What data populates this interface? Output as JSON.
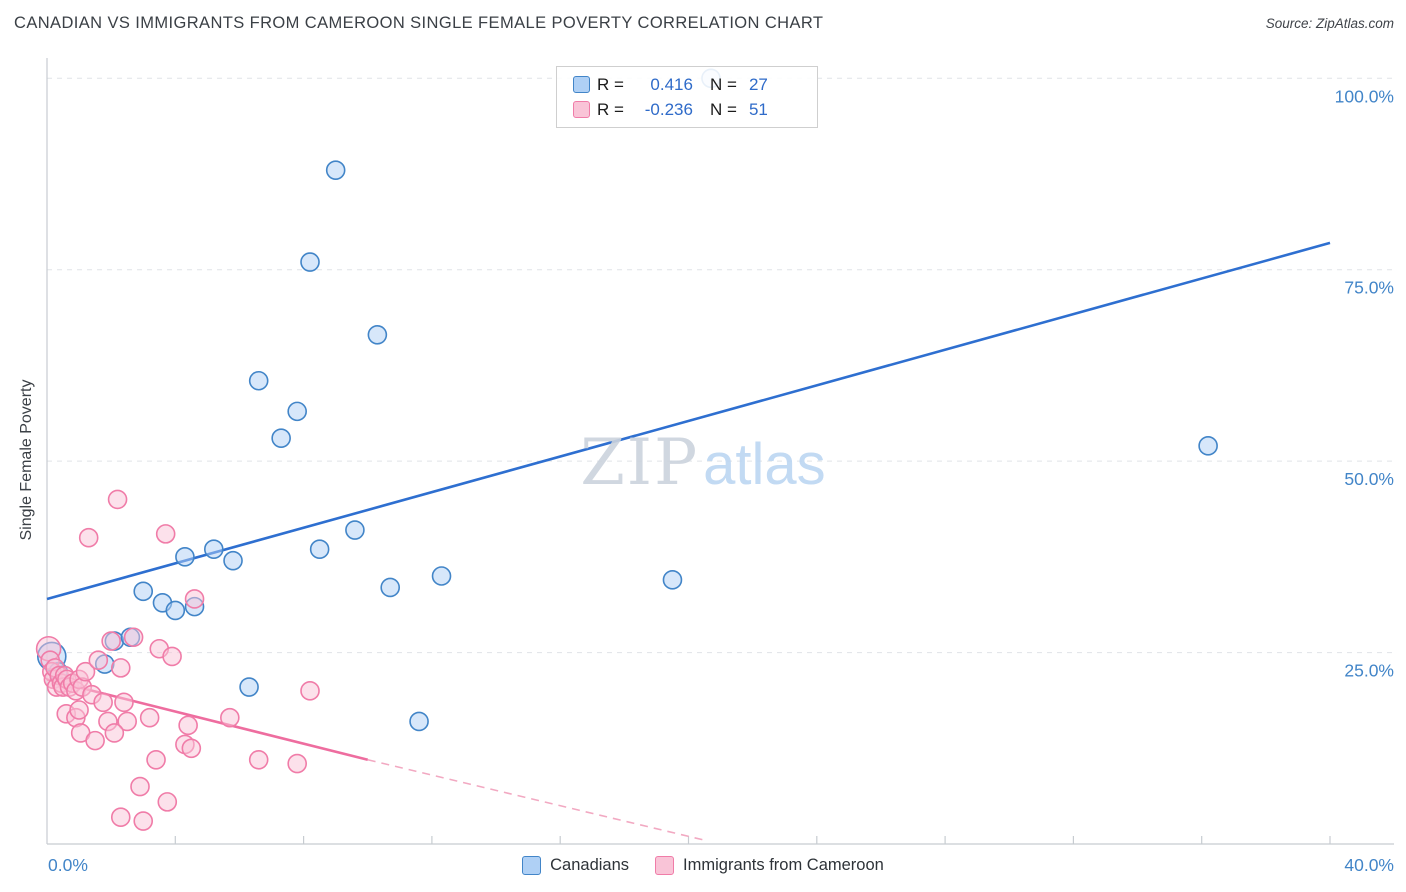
{
  "header": {
    "title": "CANADIAN VS IMMIGRANTS FROM CAMEROON SINGLE FEMALE POVERTY CORRELATION CHART",
    "source": "Source: ZipAtlas.com"
  },
  "axes": {
    "y_label": "Single Female Poverty"
  },
  "watermark": {
    "zip": "ZIP",
    "atlas": "atlas"
  },
  "legend_box": {
    "r_label": "R =",
    "n_label": "N ="
  },
  "bottom_legend": {
    "items": [
      {
        "label": "Canadians"
      },
      {
        "label": "Immigrants from Cameroon"
      }
    ]
  },
  "chart_data": {
    "type": "scatter",
    "title": "CANADIAN VS IMMIGRANTS FROM CAMEROON SINGLE FEMALE POVERTY CORRELATION CHART",
    "xlabel": "",
    "ylabel": "Single Female Poverty",
    "xlim": [
      0,
      40
    ],
    "ylim": [
      0,
      105
    ],
    "x_unit": "%",
    "y_unit": "%",
    "grid": "horizontal-dashed",
    "legend_position": "bottom-center",
    "axis_label_color": "#4285C8",
    "x_min_label": "0.0%",
    "x_max_label": "40.0%",
    "yticks": [
      {
        "value": 25,
        "label": "25.0%"
      },
      {
        "value": 50,
        "label": "50.0%"
      },
      {
        "value": 75,
        "label": "75.0%"
      },
      {
        "value": 100,
        "label": "100.0%"
      }
    ],
    "xticks": [
      4,
      8,
      12,
      16,
      20,
      24,
      28,
      32,
      36,
      40
    ],
    "series": [
      {
        "name": "Canadians",
        "R": 0.416,
        "N": 27,
        "fill": "#AFD0F5",
        "stroke": "#4285C8",
        "line": "#2E6FD0",
        "points": [
          {
            "x": 0.15,
            "y": 24.5,
            "r": 14
          },
          {
            "x": 0.35,
            "y": 22.5
          },
          {
            "x": 1.8,
            "y": 23.5
          },
          {
            "x": 2.1,
            "y": 26.5
          },
          {
            "x": 2.6,
            "y": 27
          },
          {
            "x": 3.0,
            "y": 33
          },
          {
            "x": 3.6,
            "y": 31.5
          },
          {
            "x": 4.0,
            "y": 30.5
          },
          {
            "x": 4.3,
            "y": 37.5
          },
          {
            "x": 4.6,
            "y": 31
          },
          {
            "x": 5.2,
            "y": 38.5
          },
          {
            "x": 5.8,
            "y": 37
          },
          {
            "x": 6.3,
            "y": 20.5
          },
          {
            "x": 6.6,
            "y": 60.5
          },
          {
            "x": 7.3,
            "y": 53
          },
          {
            "x": 7.8,
            "y": 56.5
          },
          {
            "x": 8.2,
            "y": 76
          },
          {
            "x": 9.0,
            "y": 88
          },
          {
            "x": 10.3,
            "y": 66.5
          },
          {
            "x": 8.5,
            "y": 38.5
          },
          {
            "x": 9.6,
            "y": 41
          },
          {
            "x": 10.7,
            "y": 33.5
          },
          {
            "x": 12.3,
            "y": 35
          },
          {
            "x": 11.6,
            "y": 16
          },
          {
            "x": 19.5,
            "y": 34.5
          },
          {
            "x": 20.7,
            "y": 100
          },
          {
            "x": 36.2,
            "y": 52
          }
        ],
        "trend": {
          "segments": [
            {
              "x1": 0,
              "y1": 32,
              "x2": 40,
              "y2": 78.5,
              "dashed": false
            }
          ]
        }
      },
      {
        "name": "Immigrants from Cameroon",
        "R": -0.236,
        "N": 51,
        "fill": "#F9C4D7",
        "stroke": "#F07CA8",
        "line": "#EE6D9F",
        "dash_line": "#F2A9C2",
        "points": [
          {
            "x": 0.05,
            "y": 25.5,
            "r": 12
          },
          {
            "x": 0.1,
            "y": 24
          },
          {
            "x": 0.15,
            "y": 22.5
          },
          {
            "x": 0.2,
            "y": 21.5
          },
          {
            "x": 0.25,
            "y": 23
          },
          {
            "x": 0.3,
            "y": 20.5
          },
          {
            "x": 0.38,
            "y": 22
          },
          {
            "x": 0.45,
            "y": 21
          },
          {
            "x": 0.5,
            "y": 20.5
          },
          {
            "x": 0.55,
            "y": 22
          },
          {
            "x": 0.62,
            "y": 21.5
          },
          {
            "x": 0.7,
            "y": 20.5
          },
          {
            "x": 0.8,
            "y": 21
          },
          {
            "x": 0.9,
            "y": 20
          },
          {
            "x": 1.0,
            "y": 21.5
          },
          {
            "x": 1.1,
            "y": 20.5
          },
          {
            "x": 0.6,
            "y": 17
          },
          {
            "x": 0.9,
            "y": 16.5
          },
          {
            "x": 1.05,
            "y": 14.5
          },
          {
            "x": 1.3,
            "y": 40
          },
          {
            "x": 1.2,
            "y": 22.5
          },
          {
            "x": 1.4,
            "y": 19.5
          },
          {
            "x": 1.5,
            "y": 13.5
          },
          {
            "x": 1.6,
            "y": 24
          },
          {
            "x": 1.75,
            "y": 18.5
          },
          {
            "x": 1.9,
            "y": 16
          },
          {
            "x": 2.0,
            "y": 26.5
          },
          {
            "x": 2.2,
            "y": 45
          },
          {
            "x": 2.3,
            "y": 23
          },
          {
            "x": 2.4,
            "y": 18.5
          },
          {
            "x": 2.5,
            "y": 16
          },
          {
            "x": 2.3,
            "y": 3.5
          },
          {
            "x": 2.9,
            "y": 7.5
          },
          {
            "x": 2.7,
            "y": 27
          },
          {
            "x": 3.0,
            "y": 3
          },
          {
            "x": 3.2,
            "y": 16.5
          },
          {
            "x": 3.4,
            "y": 11
          },
          {
            "x": 3.5,
            "y": 25.5
          },
          {
            "x": 3.7,
            "y": 40.5
          },
          {
            "x": 3.75,
            "y": 5.5
          },
          {
            "x": 3.9,
            "y": 24.5
          },
          {
            "x": 4.3,
            "y": 13
          },
          {
            "x": 4.4,
            "y": 15.5
          },
          {
            "x": 4.5,
            "y": 12.5
          },
          {
            "x": 4.6,
            "y": 32
          },
          {
            "x": 5.7,
            "y": 16.5
          },
          {
            "x": 6.6,
            "y": 11
          },
          {
            "x": 7.8,
            "y": 10.5
          },
          {
            "x": 8.2,
            "y": 20
          },
          {
            "x": 2.1,
            "y": 14.5
          },
          {
            "x": 1.0,
            "y": 17.5
          }
        ],
        "trend": {
          "segments": [
            {
              "x1": 0,
              "y1": 21.5,
              "x2": 10,
              "y2": 11,
              "dashed": false
            },
            {
              "x1": 10,
              "y1": 11,
              "x2": 20.5,
              "y2": 0.5,
              "dashed": true
            }
          ]
        }
      }
    ]
  }
}
